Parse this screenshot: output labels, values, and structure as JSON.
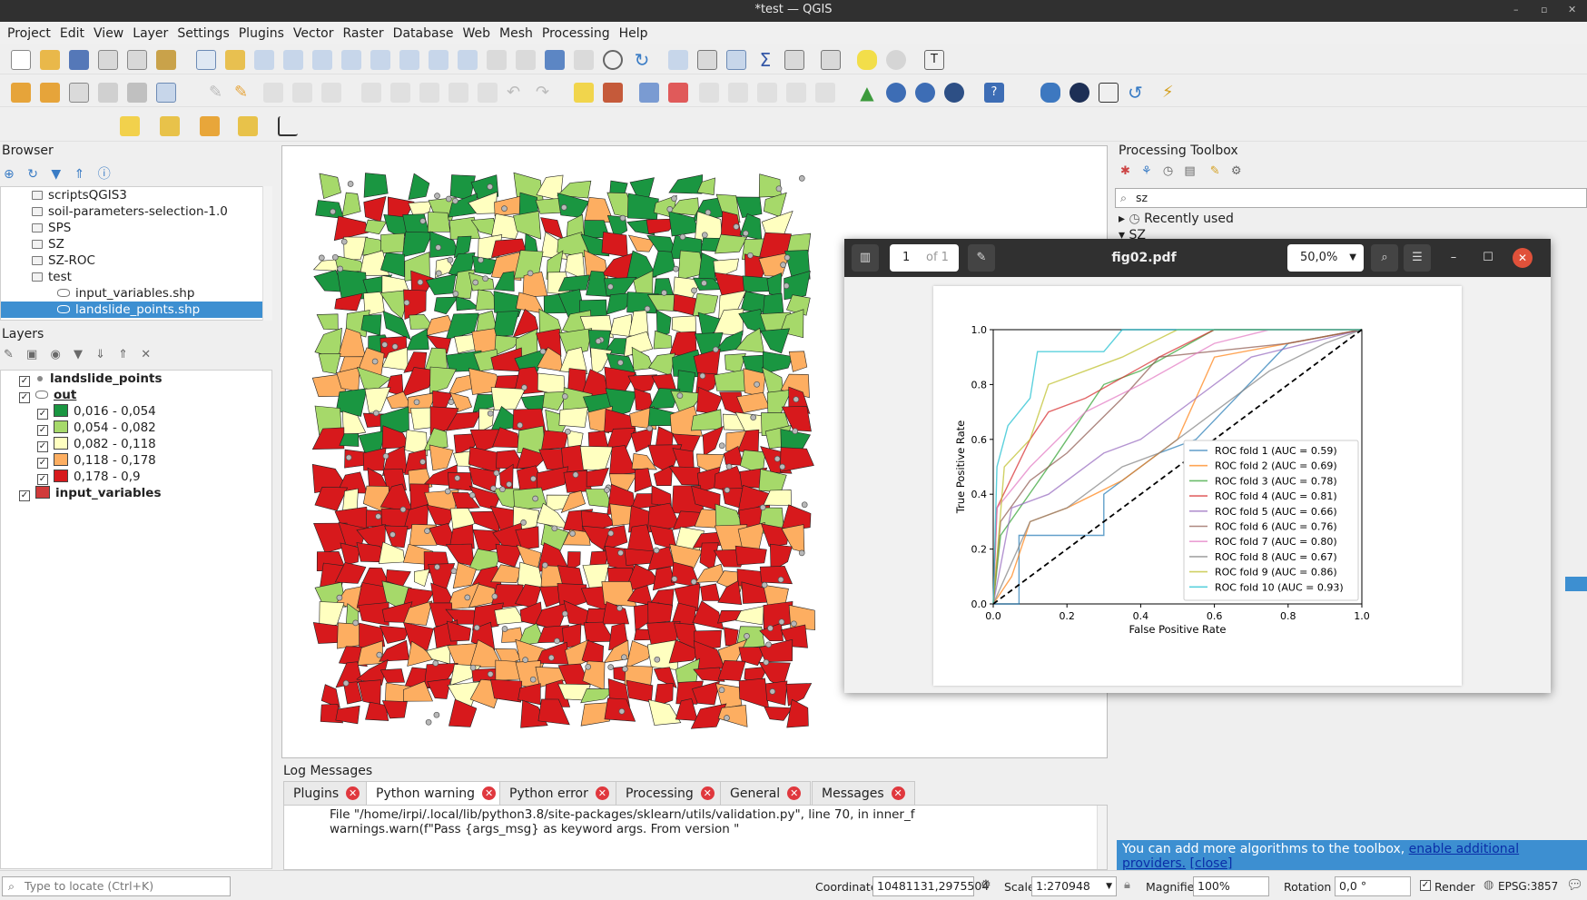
{
  "window": {
    "title": "*test — QGIS"
  },
  "menu": [
    "Project",
    "Edit",
    "View",
    "Layer",
    "Settings",
    "Plugins",
    "Vector",
    "Raster",
    "Database",
    "Web",
    "Mesh",
    "Processing",
    "Help"
  ],
  "browser": {
    "title": "Browser",
    "items": [
      {
        "label": "scriptsQGIS3",
        "type": "folder"
      },
      {
        "label": "soil-parameters-selection-1.0",
        "type": "folder"
      },
      {
        "label": "SPS",
        "type": "folder"
      },
      {
        "label": "SZ",
        "type": "folder"
      },
      {
        "label": "SZ-ROC",
        "type": "folder"
      },
      {
        "label": "test",
        "type": "folder",
        "expanded": true
      },
      {
        "label": "input_variables.shp",
        "type": "file"
      },
      {
        "label": "landslide_points.shp",
        "type": "file",
        "selected": true
      }
    ]
  },
  "layers": {
    "title": "Layers",
    "items": [
      {
        "label": "landslide_points",
        "kind": "point"
      },
      {
        "label": "out",
        "kind": "group"
      },
      {
        "label": "0,016 - 0,054",
        "color": "#1a9641"
      },
      {
        "label": "0,054 - 0,082",
        "color": "#a6d96a"
      },
      {
        "label": "0,082 - 0,118",
        "color": "#ffffc0"
      },
      {
        "label": "0,118 - 0,178",
        "color": "#fdae61"
      },
      {
        "label": "0,178 - 0,9",
        "color": "#d7191c"
      },
      {
        "label": "input_variables",
        "color": "#d03a3a"
      }
    ]
  },
  "toolbox": {
    "title": "Processing Toolbox",
    "search": "sz",
    "items": [
      "Recently used",
      "SZ"
    ],
    "notice": "You can add more algorithms to the toolbox,",
    "notice_link": "enable additional providers.",
    "notice_close": "[close]"
  },
  "pdf": {
    "page": "1",
    "of": "of 1",
    "filename": "fig02.pdf",
    "zoom": "50,0%"
  },
  "log": {
    "title": "Log Messages",
    "tabs": [
      "Plugins",
      "Python warning",
      "Python error",
      "Processing",
      "General",
      "Messages"
    ],
    "active_tab": "Python warning",
    "lines": [
      "File \"/home/irpi/.local/lib/python3.8/site-packages/sklearn/utils/validation.py\", line 70, in inner_f",
      "warnings.warn(f\"Pass {args_msg} as keyword args. From version \""
    ]
  },
  "status": {
    "locate_placeholder": "Type to locate (Ctrl+K)",
    "coordinate_label": "Coordinate",
    "coordinate": "10481131,2975504",
    "scale_label": "Scale",
    "scale": "1:270948",
    "magnifier_label": "Magnifier",
    "magnifier": "100%",
    "rotation_label": "Rotation",
    "rotation": "0,0 °",
    "render_label": "Render",
    "crs": "EPSG:3857"
  },
  "chart_data": {
    "type": "line",
    "xlabel": "False Positive Rate",
    "ylabel": "True Positive Rate",
    "xlim": [
      0,
      1
    ],
    "ylim": [
      0,
      1
    ],
    "xticks": [
      "0.0",
      "0.2",
      "0.4",
      "0.6",
      "0.8",
      "1.0"
    ],
    "yticks": [
      "0.0",
      "0.2",
      "0.4",
      "0.6",
      "0.8",
      "1.0"
    ],
    "legend_position": "lower-right",
    "series": [
      {
        "name": "ROC fold 1 (AUC = 0.59)",
        "color": "#1f77b4",
        "x": [
          0,
          0.07,
          0.07,
          0.3,
          0.3,
          0.45,
          0.55,
          0.8,
          1
        ],
        "y": [
          0,
          0,
          0.25,
          0.25,
          0.4,
          0.55,
          0.6,
          0.95,
          1
        ]
      },
      {
        "name": "ROC fold 2 (AUC = 0.69)",
        "color": "#ff7f0e",
        "x": [
          0,
          0.05,
          0.1,
          0.2,
          0.35,
          0.5,
          0.6,
          1
        ],
        "y": [
          0,
          0.1,
          0.3,
          0.35,
          0.45,
          0.6,
          0.9,
          1
        ]
      },
      {
        "name": "ROC fold 3 (AUC = 0.78)",
        "color": "#2ca02c",
        "x": [
          0,
          0.02,
          0.15,
          0.2,
          0.3,
          0.4,
          0.6,
          1
        ],
        "y": [
          0,
          0.25,
          0.5,
          0.6,
          0.8,
          0.85,
          1,
          1
        ]
      },
      {
        "name": "ROC fold 4 (AUC = 0.81)",
        "color": "#d62728",
        "x": [
          0,
          0.01,
          0.1,
          0.15,
          0.25,
          0.45,
          0.6,
          1
        ],
        "y": [
          0,
          0.35,
          0.6,
          0.7,
          0.75,
          0.9,
          1,
          1
        ]
      },
      {
        "name": "ROC fold 5 (AUC = 0.66)",
        "color": "#9467bd",
        "x": [
          0,
          0.05,
          0.15,
          0.3,
          0.4,
          0.55,
          0.7,
          1
        ],
        "y": [
          0,
          0.35,
          0.4,
          0.55,
          0.6,
          0.75,
          0.9,
          1
        ]
      },
      {
        "name": "ROC fold 6 (AUC = 0.76)",
        "color": "#8c564b",
        "x": [
          0,
          0.02,
          0.1,
          0.2,
          0.35,
          0.45,
          0.8,
          1
        ],
        "y": [
          0,
          0.3,
          0.45,
          0.55,
          0.75,
          0.9,
          0.95,
          1
        ]
      },
      {
        "name": "ROC fold 7 (AUC = 0.80)",
        "color": "#e377c2",
        "x": [
          0,
          0.01,
          0.1,
          0.25,
          0.4,
          0.6,
          0.75,
          1
        ],
        "y": [
          0,
          0.35,
          0.5,
          0.7,
          0.8,
          0.95,
          1,
          1
        ]
      },
      {
        "name": "ROC fold 8 (AUC = 0.67)",
        "color": "#7f7f7f",
        "x": [
          0,
          0.1,
          0.2,
          0.35,
          0.45,
          0.75,
          0.9,
          1
        ],
        "y": [
          0,
          0.3,
          0.35,
          0.5,
          0.55,
          0.85,
          0.95,
          1
        ]
      },
      {
        "name": "ROC fold 9 (AUC = 0.86)",
        "color": "#bcbd22",
        "x": [
          0,
          0.03,
          0.1,
          0.15,
          0.25,
          0.35,
          0.5,
          1
        ],
        "y": [
          0,
          0.5,
          0.6,
          0.8,
          0.85,
          0.9,
          1,
          1
        ]
      },
      {
        "name": "ROC fold 10 (AUC = 0.93)",
        "color": "#17becf",
        "x": [
          0,
          0.01,
          0.04,
          0.1,
          0.12,
          0.3,
          0.35,
          1
        ],
        "y": [
          0,
          0.5,
          0.65,
          0.75,
          0.92,
          0.92,
          1,
          1
        ]
      }
    ],
    "reference_line": {
      "x": [
        0,
        1
      ],
      "y": [
        0,
        1
      ],
      "style": "dashed",
      "color": "#000000"
    }
  }
}
